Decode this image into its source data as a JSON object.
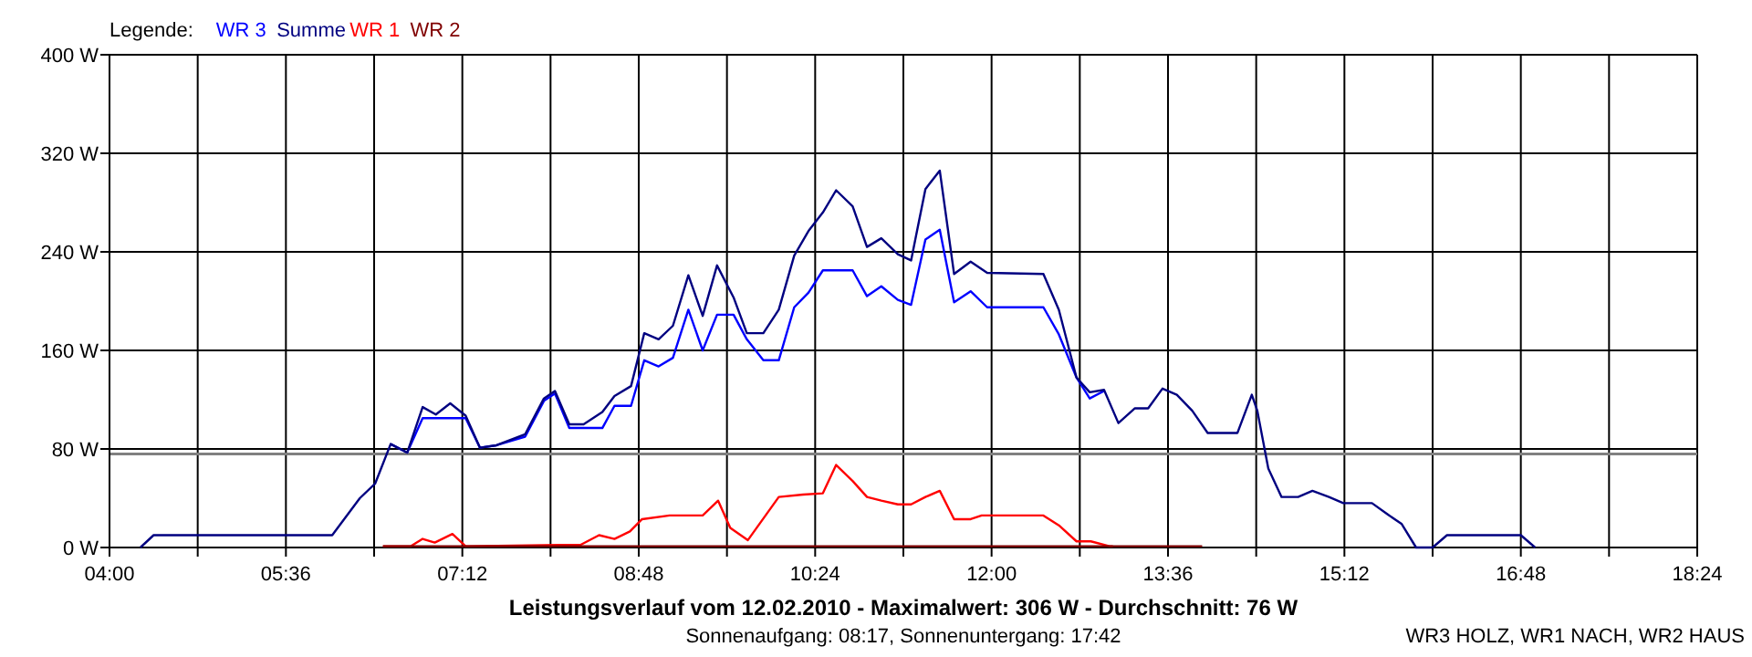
{
  "chart_data": {
    "type": "line",
    "title": "Leistungsverlauf vom 12.02.2010 - Maximalwert: 306 W - Durchschnitt: 76 W",
    "subtitle": "Sonnenaufgang: 08:17, Sonnenuntergang: 17:42",
    "legend_title": "Legende:",
    "legend": "top left",
    "grid": true,
    "line_style": "solid",
    "annotations": [
      "WR3 HOLZ, WR1 NACH, WR2 HAUS"
    ],
    "xlim": [
      4,
      18.4
    ],
    "xticks": [
      {
        "value": 4,
        "label": "04:00"
      },
      {
        "value": 4.8,
        "label": null
      },
      {
        "value": 5.6,
        "label": "05:36"
      },
      {
        "value": 6.4,
        "label": null
      },
      {
        "value": 7.2,
        "label": "07:12"
      },
      {
        "value": 8,
        "label": null
      },
      {
        "value": 8.8,
        "label": "08:48"
      },
      {
        "value": 9.6,
        "label": null
      },
      {
        "value": 10.4,
        "label": "10:24"
      },
      {
        "value": 11.2,
        "label": null
      },
      {
        "value": 12,
        "label": "12:00"
      },
      {
        "value": 12.8,
        "label": null
      },
      {
        "value": 13.6,
        "label": "13:36"
      },
      {
        "value": 14.4,
        "label": null
      },
      {
        "value": 15.2,
        "label": "15:12"
      },
      {
        "value": 16,
        "label": null
      },
      {
        "value": 16.8,
        "label": "16:48"
      },
      {
        "value": 17.6,
        "label": null
      },
      {
        "value": 18.4,
        "label": "18:24"
      }
    ],
    "ylim": [
      0,
      400
    ],
    "yticks": [
      {
        "value": 0,
        "label": "0 W"
      },
      {
        "value": 80,
        "label": "80 W"
      },
      {
        "value": 160,
        "label": "160 W"
      },
      {
        "value": 240,
        "label": "240 W"
      },
      {
        "value": 320,
        "label": "320 W"
      },
      {
        "value": 400,
        "label": "400 W"
      }
    ],
    "ref_lines": [
      {
        "axis": "y",
        "value": 76,
        "color": "#808080"
      }
    ],
    "series": [
      {
        "name": "WR 3",
        "color": "#0000ff",
        "x": [
          6.55,
          6.7,
          6.84,
          7.23,
          7.36,
          7.51,
          7.77,
          7.94,
          8.04,
          8.17,
          8.3,
          8.47,
          8.58,
          8.73,
          8.85,
          8.98,
          9.11,
          9.25,
          9.38,
          9.51,
          9.66,
          9.78,
          9.93,
          10.07,
          10.21,
          10.34,
          10.47,
          10.74,
          10.87,
          11,
          11.15,
          11.27,
          11.4,
          11.53,
          11.66,
          11.81,
          11.96,
          12.47,
          12.61,
          12.77,
          12.89,
          13.02
        ],
        "values": [
          84,
          77,
          105,
          105,
          81,
          83,
          90,
          119,
          125,
          97,
          97,
          97,
          115,
          115,
          152,
          147,
          154,
          193,
          160,
          189,
          189,
          169,
          152,
          152,
          195,
          207,
          225,
          225,
          204,
          212,
          201,
          197,
          250,
          258,
          199,
          208,
          195,
          195,
          173,
          138,
          121,
          127
        ]
      },
      {
        "name": "Summe",
        "color": "#000080",
        "x": [
          4.28,
          4.4,
          6.02,
          6.27,
          6.41,
          6.55,
          6.7,
          6.84,
          6.96,
          7.09,
          7.23,
          7.36,
          7.51,
          7.77,
          7.94,
          8.04,
          8.17,
          8.3,
          8.47,
          8.58,
          8.73,
          8.85,
          8.98,
          9.11,
          9.25,
          9.38,
          9.51,
          9.66,
          9.78,
          9.93,
          10.07,
          10.21,
          10.34,
          10.47,
          10.59,
          10.74,
          10.87,
          11,
          11.15,
          11.27,
          11.4,
          11.53,
          11.66,
          11.81,
          11.96,
          12.47,
          12.61,
          12.77,
          12.89,
          13.02,
          13.15,
          13.3,
          13.42,
          13.55,
          13.68,
          13.82,
          13.96,
          14.23,
          14.36,
          14.41,
          14.51,
          14.63,
          14.78,
          14.91,
          15.06,
          15.19,
          15.45,
          15.59,
          15.72,
          15.85,
          16,
          16.13,
          16.8,
          16.93
        ],
        "values": [
          0,
          10,
          10,
          40,
          52,
          84,
          77,
          114,
          108,
          117,
          107,
          81,
          83,
          92,
          121,
          127,
          100,
          100,
          110,
          123,
          131,
          174,
          169,
          180,
          221,
          188,
          229,
          203,
          174,
          174,
          193,
          237,
          257,
          272,
          290,
          277,
          244,
          251,
          238,
          233,
          291,
          306,
          222,
          232,
          223,
          222,
          193,
          138,
          126,
          128,
          101,
          113,
          113,
          129,
          124,
          111,
          93,
          93,
          124,
          111,
          64,
          41,
          41,
          46,
          41,
          36,
          36,
          27,
          19,
          0,
          0,
          10,
          10,
          0
        ]
      },
      {
        "name": "WR 1",
        "color": "#ff0000",
        "x": [
          6.48,
          6.73,
          6.84,
          6.95,
          7.11,
          7.23,
          8.09,
          8.27,
          8.44,
          8.58,
          8.72,
          8.83,
          9.08,
          9.38,
          9.52,
          9.63,
          9.79,
          10.07,
          10.29,
          10.47,
          10.59,
          10.74,
          10.87,
          11,
          11.15,
          11.27,
          11.4,
          11.53,
          11.66,
          11.81,
          11.91,
          12.47,
          12.61,
          12.77,
          12.9,
          13.07,
          13.1
        ],
        "values": [
          1,
          1,
          7,
          4,
          11,
          1,
          2,
          2,
          10,
          7,
          13,
          23,
          26,
          26,
          38,
          16,
          6,
          41,
          43,
          44,
          67,
          54,
          41,
          38,
          35,
          35,
          41,
          46,
          23,
          23,
          26,
          26,
          18,
          5,
          5,
          1,
          1
        ]
      },
      {
        "name": "WR 2",
        "color": "#800000",
        "x": [
          6.48,
          6.9,
          7.43,
          7.56,
          7.72,
          8.37,
          10.95,
          11.07,
          13.22,
          13.91
        ],
        "values": [
          1,
          1,
          1,
          1,
          1,
          1,
          1,
          1,
          1,
          1
        ]
      }
    ]
  }
}
